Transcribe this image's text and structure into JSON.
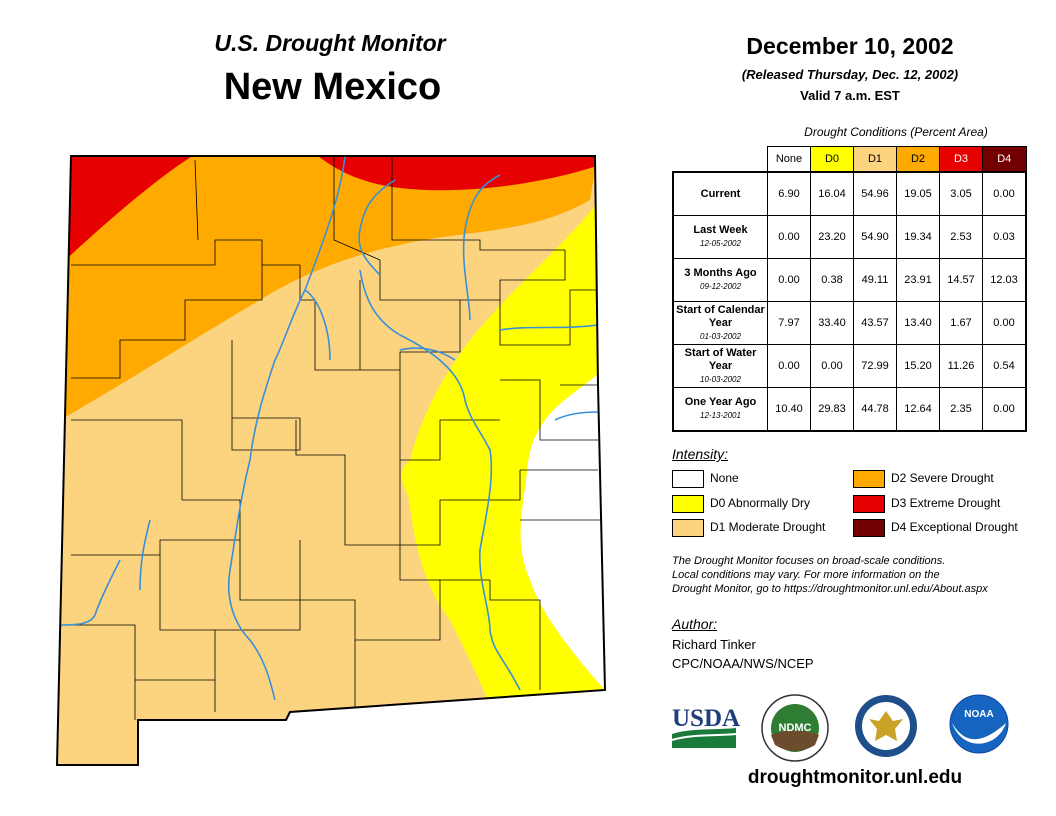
{
  "header": {
    "subtitle": "U.S. Drought Monitor",
    "state": "New Mexico",
    "date": "December 10, 2002",
    "released": "(Released Thursday, Dec. 12, 2002)",
    "valid": "Valid 7 a.m. EST"
  },
  "table": {
    "caption": "Drought Conditions (Percent Area)",
    "columns": [
      "None",
      "D0",
      "D1",
      "D2",
      "D3",
      "D4"
    ],
    "column_colors": [
      "#ffffff",
      "#ffff00",
      "#fcd37f",
      "#ffaa00",
      "#e60000",
      "#730000"
    ],
    "rows": [
      {
        "label": "Current",
        "date": "",
        "values": [
          "6.90",
          "16.04",
          "54.96",
          "19.05",
          "3.05",
          "0.00"
        ]
      },
      {
        "label": "Last Week",
        "date": "12-05-2002",
        "values": [
          "0.00",
          "23.20",
          "54.90",
          "19.34",
          "2.53",
          "0.03"
        ]
      },
      {
        "label": "3 Months Ago",
        "date": "09-12-2002",
        "values": [
          "0.00",
          "0.38",
          "49.11",
          "23.91",
          "14.57",
          "12.03"
        ]
      },
      {
        "label": "Start of Calendar Year",
        "date": "01-03-2002",
        "values": [
          "7.97",
          "33.40",
          "43.57",
          "13.40",
          "1.67",
          "0.00"
        ]
      },
      {
        "label": "Start of Water Year",
        "date": "10-03-2002",
        "values": [
          "0.00",
          "0.00",
          "72.99",
          "15.20",
          "11.26",
          "0.54"
        ]
      },
      {
        "label": "One Year Ago",
        "date": "12-13-2001",
        "values": [
          "10.40",
          "29.83",
          "44.78",
          "12.64",
          "2.35",
          "0.00"
        ]
      }
    ]
  },
  "legend": {
    "title": "Intensity:",
    "items": [
      {
        "label": "None",
        "color": "#ffffff"
      },
      {
        "label": "D0 Abnormally Dry",
        "color": "#ffff00"
      },
      {
        "label": "D1 Moderate Drought",
        "color": "#fcd37f"
      },
      {
        "label": "D2 Severe Drought",
        "color": "#ffaa00"
      },
      {
        "label": "D3 Extreme Drought",
        "color": "#e60000"
      },
      {
        "label": "D4 Exceptional Drought",
        "color": "#730000"
      }
    ]
  },
  "note": {
    "line1": "The Drought Monitor focuses on broad-scale conditions.",
    "line2": "Local conditions may vary. For more information on the",
    "line3": "Drought Monitor, go to https://droughtmonitor.unl.edu/About.aspx"
  },
  "author": {
    "title": "Author:",
    "name": "Richard Tinker",
    "org": "CPC/NOAA/NWS/NCEP"
  },
  "logos": {
    "usda": "USDA",
    "ndmc": "NDMC",
    "noaa": "NOAA"
  },
  "colors": {
    "river": "#3a8fd9",
    "border": "#000000"
  },
  "website": "droughtmonitor.unl.edu"
}
